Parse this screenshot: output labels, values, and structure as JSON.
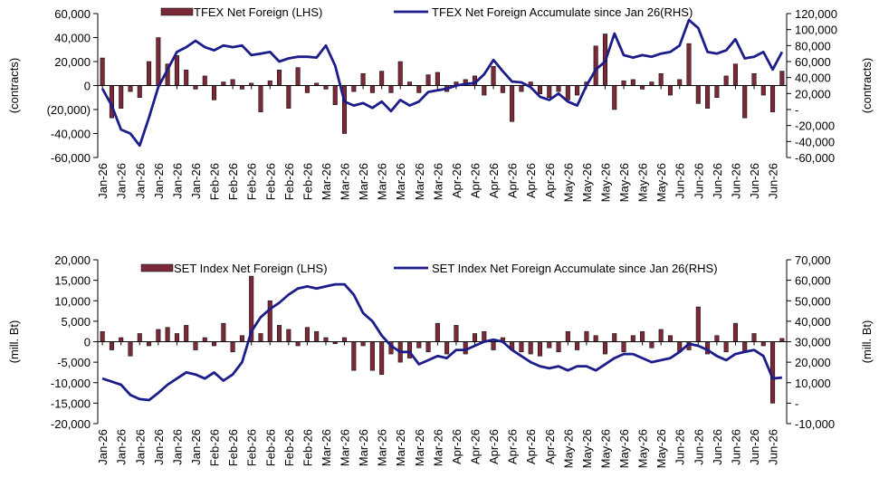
{
  "chart_data": [
    {
      "type": "combo",
      "y_label": "(contracts)",
      "y2_label": "(contracts)",
      "categories": [
        "Jan-26",
        null,
        "Jan-26",
        null,
        "Jan-26",
        null,
        "Jan-26",
        null,
        "Jan-26",
        null,
        "Jan-26",
        null,
        "Feb-26",
        null,
        "Feb-26",
        null,
        "Feb-26",
        null,
        "Feb-26",
        null,
        "Feb-26",
        null,
        "Feb-26",
        null,
        "Mar-26",
        null,
        "Mar-26",
        null,
        "Mar-26",
        null,
        "Mar-26",
        null,
        "Mar-26",
        null,
        "Mar-26",
        null,
        "Mar-26",
        null,
        "Apr-26",
        null,
        "Apr-26",
        null,
        "Apr-26",
        null,
        "Apr-26",
        null,
        "Apr-26",
        null,
        "Apr-26",
        null,
        "May-26",
        null,
        "May-26",
        null,
        "May-26",
        null,
        "May-26",
        null,
        "May-26",
        null,
        "May-26",
        null,
        "Jun-26",
        null,
        "Jun-26",
        null,
        "Jun-26",
        null,
        "Jun-26",
        null,
        "Jun-26",
        null,
        "Jun-26",
        null
      ],
      "ylim": [
        -60000,
        60000
      ],
      "yticks": [
        {
          "value": 60000,
          "label": "60,000"
        },
        {
          "value": 40000,
          "label": "40,000"
        },
        {
          "value": 20000,
          "label": "20,000"
        },
        0,
        {
          "value": -20000,
          "label": "(20,000)"
        },
        {
          "value": -40000,
          "label": "-40,000"
        },
        {
          "value": -60000,
          "label": "-60,000"
        }
      ],
      "y2lim": [
        -60000,
        120000
      ],
      "y2ticks": [
        {
          "value": 120000,
          "label": "120,000"
        },
        {
          "value": 100000,
          "label": "100,000"
        },
        {
          "value": 80000,
          "label": "80,000"
        },
        {
          "value": 60000,
          "label": "60,000"
        },
        {
          "value": 40000,
          "label": "40,000"
        },
        {
          "value": 20000,
          "label": "20,000"
        },
        {
          "value": 0,
          "label": "-"
        },
        {
          "value": -20000,
          "label": "-20,000"
        },
        {
          "value": -40000,
          "label": "-40,000"
        },
        {
          "value": -60000,
          "label": "-60,000"
        }
      ],
      "series": [
        {
          "name": "TFEX Net Foreign (LHS)",
          "type": "bar",
          "color": "#7a2a36",
          "values": [
            23000,
            -27000,
            -19000,
            -5000,
            -10000,
            20000,
            40000,
            18000,
            25000,
            13000,
            -3000,
            8000,
            -12000,
            3000,
            5000,
            -3000,
            2000,
            -22000,
            4000,
            13000,
            -19000,
            15000,
            -6000,
            2000,
            -3000,
            -16000,
            -40000,
            -5000,
            10000,
            -6000,
            12000,
            -6000,
            20000,
            3000,
            -6000,
            9000,
            11000,
            -5000,
            3000,
            5000,
            8000,
            -8000,
            16000,
            -6000,
            -30000,
            -5000,
            3000,
            -7000,
            -10000,
            -5000,
            -12000,
            -8000,
            3000,
            33000,
            43000,
            -20000,
            4000,
            5000,
            -3000,
            3000,
            10000,
            -8000,
            5000,
            35000,
            -15000,
            -19000,
            -10000,
            8000,
            18000,
            -27000,
            10000,
            -8000,
            -22000,
            12000
          ]
        },
        {
          "name": "TFEX Net Foreign Accumulate since Jan 26(RHS)",
          "type": "line",
          "axis": "y2",
          "color": "#1c1c8a",
          "values": [
            26000,
            5000,
            -25000,
            -30000,
            -45000,
            -10000,
            28000,
            50000,
            72000,
            78000,
            86000,
            78000,
            74000,
            80000,
            78000,
            80000,
            68000,
            70000,
            72000,
            60000,
            64000,
            66000,
            66000,
            65000,
            80000,
            55000,
            10000,
            5000,
            8000,
            2000,
            10000,
            -2000,
            12000,
            5000,
            10000,
            22000,
            24000,
            26000,
            30000,
            32000,
            33000,
            44000,
            62000,
            48000,
            35000,
            34000,
            28000,
            16000,
            12000,
            20000,
            10000,
            5000,
            30000,
            50000,
            60000,
            95000,
            68000,
            65000,
            68000,
            66000,
            70000,
            72000,
            80000,
            112000,
            102000,
            72000,
            70000,
            74000,
            88000,
            64000,
            66000,
            72000,
            50000,
            72000
          ]
        }
      ]
    },
    {
      "type": "combo",
      "y_label": "(mill. Bt)",
      "y2_label": "(mill. Bt)",
      "categories": [
        "Jan-26",
        null,
        "Jan-26",
        null,
        "Jan-26",
        null,
        "Jan-26",
        null,
        "Jan-26",
        null,
        "Jan-26",
        null,
        "Feb-26",
        null,
        "Feb-26",
        null,
        "Feb-26",
        null,
        "Feb-26",
        null,
        "Feb-26",
        null,
        "Feb-26",
        null,
        "Mar-26",
        null,
        "Mar-26",
        null,
        "Mar-26",
        null,
        "Mar-26",
        null,
        "Mar-26",
        null,
        "Mar-26",
        null,
        "Mar-26",
        null,
        "Apr-26",
        null,
        "Apr-26",
        null,
        "Apr-26",
        null,
        "Apr-26",
        null,
        "Apr-26",
        null,
        "Apr-26",
        null,
        "May-26",
        null,
        "May-26",
        null,
        "May-26",
        null,
        "May-26",
        null,
        "May-26",
        null,
        "May-26",
        null,
        "Jun-26",
        null,
        "Jun-26",
        null,
        "Jun-26",
        null,
        "Jun-26",
        null,
        "Jun-26",
        null,
        "Jun-26",
        null
      ],
      "ylim": [
        -20000,
        20000
      ],
      "yticks": [
        {
          "value": 20000,
          "label": "20,000"
        },
        {
          "value": 15000,
          "label": "15,000"
        },
        {
          "value": 10000,
          "label": "10,000"
        },
        {
          "value": 5000,
          "label": "5,000"
        },
        0,
        {
          "value": -5000,
          "label": "-5,000"
        },
        {
          "value": -10000,
          "label": "-10,000"
        },
        {
          "value": -15000,
          "label": "-15,000"
        },
        {
          "value": -20000,
          "label": "-20,000"
        }
      ],
      "y2lim": [
        -10000,
        70000
      ],
      "y2ticks": [
        {
          "value": 70000,
          "label": "70,000"
        },
        {
          "value": 60000,
          "label": "60,000"
        },
        {
          "value": 50000,
          "label": "50,000"
        },
        {
          "value": 40000,
          "label": "40,000"
        },
        {
          "value": 30000,
          "label": "30,000"
        },
        {
          "value": 20000,
          "label": "20,000"
        },
        {
          "value": 10000,
          "label": "10,000"
        },
        {
          "value": 0,
          "label": "-"
        },
        {
          "value": -10000,
          "label": "-10,000"
        }
      ],
      "series": [
        {
          "name": "SET Index Net Foreign (LHS)",
          "type": "bar",
          "color": "#7a2a36",
          "values": [
            2500,
            -2000,
            1000,
            -3500,
            2000,
            -1000,
            3000,
            3500,
            2000,
            4000,
            -2000,
            1000,
            -1000,
            4500,
            -2500,
            1500,
            16000,
            2000,
            10000,
            4000,
            3000,
            -1000,
            3500,
            2500,
            1000,
            -500,
            1000,
            -7000,
            -1000,
            -7000,
            -8000,
            -3000,
            -5000,
            -4000,
            -1500,
            -2500,
            4500,
            -3000,
            4000,
            -3000,
            2000,
            2500,
            -2000,
            1000,
            -2000,
            -2500,
            -3000,
            -3500,
            -1500,
            -2500,
            2500,
            -2000,
            2500,
            1500,
            -3000,
            2000,
            -2500,
            1500,
            2500,
            -1500,
            3000,
            1500,
            -2500,
            -2000,
            8500,
            -3000,
            1500,
            -2500,
            4500,
            -2500,
            2000,
            -1000,
            -15000,
            800
          ]
        },
        {
          "name": "SET Index Net Foreign Accumulate since Jan 26(RHS)",
          "type": "line",
          "axis": "y2",
          "color": "#1c1c8a",
          "values": [
            12000,
            10500,
            9000,
            4000,
            2000,
            1500,
            5000,
            9000,
            12000,
            15000,
            14000,
            12000,
            15000,
            11000,
            14000,
            20000,
            35000,
            42000,
            46000,
            49000,
            53000,
            56000,
            57000,
            56000,
            57000,
            58000,
            58000,
            53000,
            44000,
            40000,
            33000,
            28000,
            25000,
            25000,
            19000,
            21000,
            23000,
            22000,
            26000,
            26000,
            28000,
            30000,
            31000,
            30000,
            26000,
            23000,
            20000,
            18000,
            17000,
            18000,
            16000,
            18000,
            18000,
            16000,
            19000,
            22000,
            24000,
            24000,
            22000,
            20000,
            21000,
            22000,
            25000,
            29000,
            28000,
            26000,
            23000,
            21000,
            24000,
            25000,
            26000,
            23000,
            12000,
            12500
          ]
        }
      ]
    }
  ]
}
